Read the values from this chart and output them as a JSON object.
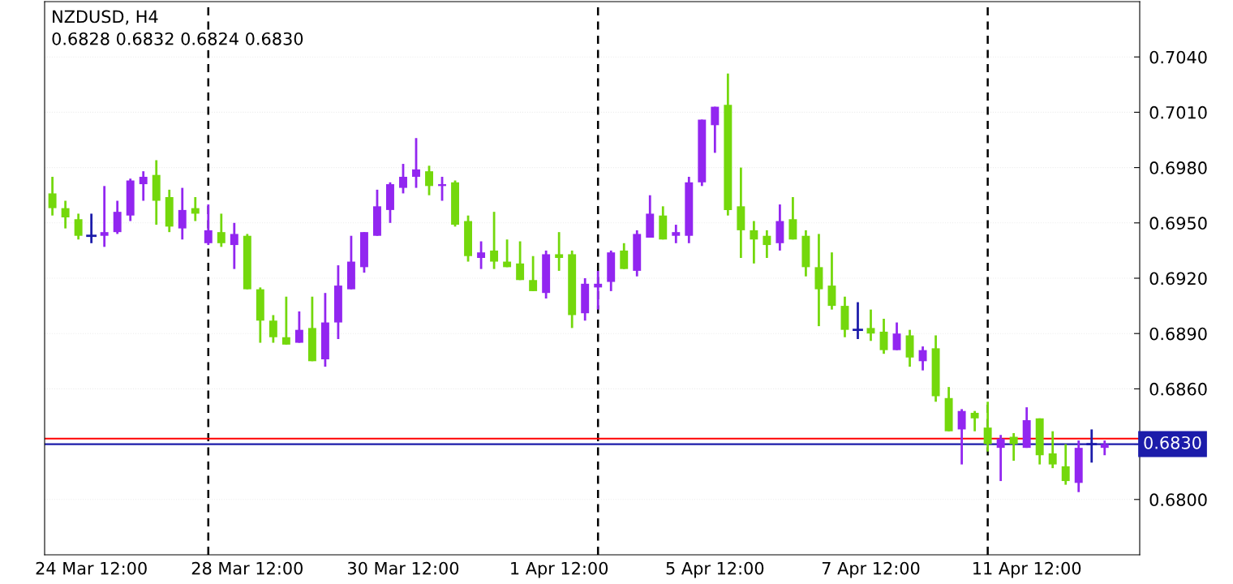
{
  "chart_data": {
    "type": "candlestick",
    "title": "NZDUSD, H4",
    "subtitle": "0.6828 0.6832 0.6824 0.6830",
    "categories": [
      null,
      null,
      null,
      "24 Mar 12:00",
      null,
      null,
      null,
      null,
      null,
      null,
      null,
      null,
      null,
      null,
      null,
      "28 Mar 12:00",
      null,
      null,
      null,
      null,
      null,
      null,
      null,
      null,
      null,
      null,
      null,
      "30 Mar 12:00",
      null,
      null,
      null,
      null,
      null,
      null,
      null,
      null,
      null,
      null,
      null,
      "1 Apr 12:00",
      null,
      null,
      null,
      null,
      null,
      null,
      null,
      null,
      null,
      null,
      null,
      "5 Apr 12:00",
      null,
      null,
      null,
      null,
      null,
      null,
      null,
      null,
      null,
      null,
      null,
      "7 Apr 12:00",
      null,
      null,
      null,
      null,
      null,
      null,
      null,
      null,
      null,
      null,
      null,
      "11 Apr 12:00",
      null,
      null,
      null,
      null,
      null,
      null
    ],
    "ohlc": [
      [
        0.6966,
        0.6975,
        0.6954,
        0.6958
      ],
      [
        0.6958,
        0.6962,
        0.6947,
        0.6953
      ],
      [
        0.6952,
        0.6955,
        0.6941,
        0.6943
      ],
      [
        0.6943,
        0.6955,
        0.6939,
        0.6943
      ],
      [
        0.6943,
        0.697,
        0.6937,
        0.6945
      ],
      [
        0.6945,
        0.6962,
        0.6944,
        0.6956
      ],
      [
        0.6954,
        0.6974,
        0.6951,
        0.6973
      ],
      [
        0.6971,
        0.6978,
        0.6962,
        0.6975
      ],
      [
        0.6976,
        0.6984,
        0.6949,
        0.6962
      ],
      [
        0.6964,
        0.6968,
        0.6945,
        0.6948
      ],
      [
        0.6947,
        0.6969,
        0.6941,
        0.6957
      ],
      [
        0.6958,
        0.6964,
        0.6951,
        0.6955
      ],
      [
        0.6939,
        0.696,
        0.6938,
        0.6946
      ],
      [
        0.6945,
        0.6955,
        0.6937,
        0.6939
      ],
      [
        0.6938,
        0.695,
        0.6925,
        0.6944
      ],
      [
        0.6943,
        0.6944,
        0.6914,
        0.6914
      ],
      [
        0.6914,
        0.6915,
        0.6885,
        0.6897
      ],
      [
        0.6897,
        0.69,
        0.6885,
        0.6888
      ],
      [
        0.6888,
        0.691,
        0.6884,
        0.6884
      ],
      [
        0.6885,
        0.6902,
        0.6885,
        0.6892
      ],
      [
        0.6893,
        0.691,
        0.6875,
        0.6875
      ],
      [
        0.6876,
        0.6912,
        0.6872,
        0.6896
      ],
      [
        0.6896,
        0.6927,
        0.6887,
        0.6916
      ],
      [
        0.6914,
        0.6943,
        0.6914,
        0.6929
      ],
      [
        0.6926,
        0.6945,
        0.6923,
        0.6945
      ],
      [
        0.6943,
        0.6968,
        0.6943,
        0.6959
      ],
      [
        0.6957,
        0.6972,
        0.695,
        0.6971
      ],
      [
        0.6969,
        0.6982,
        0.6966,
        0.6975
      ],
      [
        0.6975,
        0.6996,
        0.6969,
        0.6979
      ],
      [
        0.6978,
        0.6981,
        0.6965,
        0.697
      ],
      [
        0.697,
        0.6975,
        0.6962,
        0.6971
      ],
      [
        0.6972,
        0.6973,
        0.6948,
        0.6949
      ],
      [
        0.6951,
        0.6954,
        0.6929,
        0.6932
      ],
      [
        0.6931,
        0.694,
        0.6925,
        0.6934
      ],
      [
        0.6935,
        0.6956,
        0.6925,
        0.6929
      ],
      [
        0.6929,
        0.6941,
        0.6926,
        0.6926
      ],
      [
        0.6928,
        0.694,
        0.6919,
        0.6919
      ],
      [
        0.6919,
        0.6932,
        0.6913,
        0.6913
      ],
      [
        0.6912,
        0.6935,
        0.6909,
        0.6933
      ],
      [
        0.6933,
        0.6945,
        0.6924,
        0.6931
      ],
      [
        0.6933,
        0.6935,
        0.6893,
        0.69
      ],
      [
        0.6901,
        0.692,
        0.6897,
        0.6917
      ],
      [
        0.6915,
        0.6924,
        0.6903,
        0.6917
      ],
      [
        0.6918,
        0.6935,
        0.6913,
        0.6934
      ],
      [
        0.6935,
        0.6939,
        0.6925,
        0.6925
      ],
      [
        0.6924,
        0.6946,
        0.6921,
        0.6944
      ],
      [
        0.6942,
        0.6965,
        0.6942,
        0.6955
      ],
      [
        0.6954,
        0.6959,
        0.6941,
        0.6941
      ],
      [
        0.6943,
        0.6949,
        0.6939,
        0.6945
      ],
      [
        0.6943,
        0.6975,
        0.6939,
        0.6972
      ],
      [
        0.6972,
        0.7006,
        0.697,
        0.7006
      ],
      [
        0.7003,
        0.7013,
        0.6988,
        0.7013
      ],
      [
        0.7014,
        0.7031,
        0.6954,
        0.6957
      ],
      [
        0.6959,
        0.698,
        0.6931,
        0.6946
      ],
      [
        0.6946,
        0.6951,
        0.6928,
        0.6941
      ],
      [
        0.6943,
        0.6946,
        0.6931,
        0.6938
      ],
      [
        0.6939,
        0.696,
        0.6935,
        0.6951
      ],
      [
        0.6952,
        0.6964,
        0.6941,
        0.6941
      ],
      [
        0.6943,
        0.6946,
        0.6921,
        0.6926
      ],
      [
        0.6926,
        0.6944,
        0.6894,
        0.6914
      ],
      [
        0.6916,
        0.6934,
        0.6903,
        0.6905
      ],
      [
        0.6905,
        0.691,
        0.6888,
        0.6892
      ],
      [
        0.6892,
        0.6907,
        0.6887,
        0.6892
      ],
      [
        0.6893,
        0.6903,
        0.6886,
        0.689
      ],
      [
        0.6891,
        0.6898,
        0.6879,
        0.6881
      ],
      [
        0.6881,
        0.6896,
        0.6881,
        0.689
      ],
      [
        0.6889,
        0.6892,
        0.6872,
        0.6877
      ],
      [
        0.6875,
        0.6883,
        0.687,
        0.6881
      ],
      [
        0.6882,
        0.6889,
        0.6853,
        0.6856
      ],
      [
        0.6855,
        0.6861,
        0.6837,
        0.6837
      ],
      [
        0.6838,
        0.6849,
        0.6819,
        0.6848
      ],
      [
        0.6847,
        0.6848,
        0.6837,
        0.6844
      ],
      [
        0.6839,
        0.6853,
        0.6826,
        0.683
      ],
      [
        0.6828,
        0.6835,
        0.681,
        0.6833
      ],
      [
        0.6834,
        0.6836,
        0.6821,
        0.683
      ],
      [
        0.6828,
        0.685,
        0.6828,
        0.6843
      ],
      [
        0.6844,
        0.6844,
        0.6819,
        0.6824
      ],
      [
        0.6825,
        0.6837,
        0.6817,
        0.6819
      ],
      [
        0.6818,
        0.683,
        0.6808,
        0.681
      ],
      [
        0.6809,
        0.6832,
        0.6804,
        0.6828
      ],
      [
        0.683,
        0.6838,
        0.682,
        0.683
      ],
      [
        0.6828,
        0.6832,
        0.6824,
        0.683
      ]
    ],
    "colors": [
      "#74d80c",
      "#74d80c",
      "#74d80c",
      "#1c1caa",
      "#9226f0",
      "#9226f0",
      "#9226f0",
      "#9226f0",
      "#74d80c",
      "#74d80c",
      "#9226f0",
      "#74d80c",
      "#9226f0",
      "#74d80c",
      "#9226f0",
      "#74d80c",
      "#74d80c",
      "#74d80c",
      "#74d80c",
      "#9226f0",
      "#74d80c",
      "#9226f0",
      "#9226f0",
      "#9226f0",
      "#9226f0",
      "#9226f0",
      "#9226f0",
      "#9226f0",
      "#9226f0",
      "#74d80c",
      "#9226f0",
      "#74d80c",
      "#74d80c",
      "#9226f0",
      "#74d80c",
      "#74d80c",
      "#74d80c",
      "#74d80c",
      "#9226f0",
      "#74d80c",
      "#74d80c",
      "#9226f0",
      "#9226f0",
      "#9226f0",
      "#74d80c",
      "#9226f0",
      "#9226f0",
      "#74d80c",
      "#9226f0",
      "#9226f0",
      "#9226f0",
      "#9226f0",
      "#74d80c",
      "#74d80c",
      "#74d80c",
      "#74d80c",
      "#9226f0",
      "#74d80c",
      "#74d80c",
      "#74d80c",
      "#74d80c",
      "#74d80c",
      "#1c1caa",
      "#74d80c",
      "#74d80c",
      "#9226f0",
      "#74d80c",
      "#9226f0",
      "#74d80c",
      "#74d80c",
      "#9226f0",
      "#74d80c",
      "#74d80c",
      "#9226f0",
      "#74d80c",
      "#9226f0",
      "#74d80c",
      "#74d80c",
      "#74d80c",
      "#9226f0",
      "#1c1caa",
      "#9226f0"
    ],
    "ylim": [
      0.677,
      0.707
    ],
    "yticks": [
      {
        "value": 0.68,
        "label": "0.6800"
      },
      {
        "value": 0.683,
        "label": null
      },
      {
        "value": 0.686,
        "label": "0.6860"
      },
      {
        "value": 0.689,
        "label": "0.6890"
      },
      {
        "value": 0.692,
        "label": "0.6920"
      },
      {
        "value": 0.695,
        "label": "0.6950"
      },
      {
        "value": 0.698,
        "label": "0.6980"
      },
      {
        "value": 0.701,
        "label": "0.7010"
      },
      {
        "value": 0.704,
        "label": "0.7040"
      }
    ],
    "grid": "y",
    "ref_lines": [
      {
        "axis": "y",
        "value": 0.6833,
        "color": "#ff0000"
      },
      {
        "axis": "y",
        "value": 0.683,
        "color": "#1c1caa",
        "label": "0.6830"
      }
    ]
  }
}
